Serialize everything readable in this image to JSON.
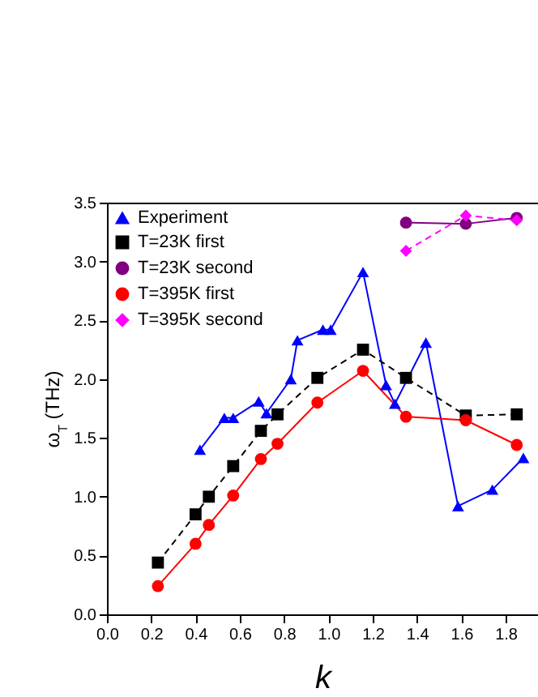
{
  "chart_data": {
    "type": "line",
    "xlabel": "k",
    "ylabel": "ω$_{T}$ (THz)",
    "xlim": [
      0,
      1.946
    ],
    "xticks": [
      {
        "value": 0,
        "label": "0.0"
      },
      {
        "value": 0.2,
        "label": "0.2"
      },
      {
        "value": 0.4,
        "label": "0.4"
      },
      {
        "value": 0.6,
        "label": "0.6"
      },
      {
        "value": 0.8,
        "label": "0.8"
      },
      {
        "value": 1,
        "label": "1.0"
      },
      {
        "value": 1.2,
        "label": "1.2"
      },
      {
        "value": 1.4,
        "label": "1.4"
      },
      {
        "value": 1.6,
        "label": "1.6"
      },
      {
        "value": 1.8,
        "label": "1.8"
      }
    ],
    "ylim": [
      0,
      3.5
    ],
    "yticks": [
      {
        "value": 0,
        "label": "0.0"
      },
      {
        "value": 0.5,
        "label": "0.5"
      },
      {
        "value": 1,
        "label": "1.0"
      },
      {
        "value": 1.5,
        "label": "1.5"
      },
      {
        "value": 2,
        "label": "2.0"
      },
      {
        "value": 2.5,
        "label": "2.5"
      },
      {
        "value": 3,
        "label": "3.0"
      },
      {
        "value": 3.5,
        "label": "3.5"
      }
    ],
    "grid": false,
    "legend": "top left",
    "series": [
      {
        "name": "Experiment",
        "color": "#0000ff",
        "marker": "triangle",
        "line_style": "solid",
        "x": [
          0.42,
          0.53,
          0.57,
          0.685,
          0.72,
          0.83,
          0.86,
          0.975,
          1.01,
          1.156,
          1.26,
          1.3,
          1.44,
          1.585,
          1.74,
          1.88
        ],
        "values": [
          1.4,
          1.67,
          1.67,
          1.81,
          1.71,
          2.0,
          2.33,
          2.42,
          2.42,
          2.91,
          1.95,
          1.79,
          2.31,
          0.92,
          1.06,
          1.33
        ]
      },
      {
        "name": "T=23K first",
        "color": "#000000",
        "marker": "square",
        "line_style": "dashed",
        "x": [
          0.23,
          0.4,
          0.46,
          0.57,
          0.695,
          0.77,
          0.95,
          1.156,
          1.35,
          1.62,
          1.85
        ],
        "values": [
          0.44,
          0.85,
          1.0,
          1.26,
          1.56,
          1.7,
          2.01,
          2.25,
          2.01,
          1.69,
          1.7
        ]
      },
      {
        "name": "T=23K second",
        "color": "#800080",
        "marker": "circle",
        "line_style": "solid",
        "x": [
          1.35,
          1.62,
          1.85
        ],
        "values": [
          3.33,
          3.32,
          3.37
        ]
      },
      {
        "name": "T=395K first",
        "color": "#ff0000",
        "marker": "circle",
        "line_style": "solid",
        "x": [
          0.23,
          0.4,
          0.46,
          0.57,
          0.695,
          0.77,
          0.95,
          1.156,
          1.35,
          1.62,
          1.85
        ],
        "values": [
          0.24,
          0.6,
          0.76,
          1.01,
          1.32,
          1.45,
          1.8,
          2.07,
          1.68,
          1.65,
          1.44
        ]
      },
      {
        "name": "T=395K second",
        "color": "#ff00ff",
        "marker": "diamond",
        "line_style": "dashed",
        "x": [
          1.35,
          1.62,
          1.85
        ],
        "values": [
          3.09,
          3.39,
          3.35
        ]
      }
    ]
  }
}
